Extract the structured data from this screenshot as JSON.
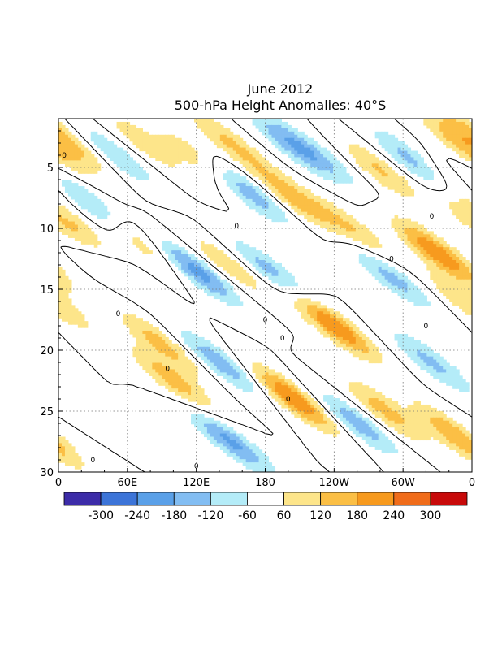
{
  "chart_data": {
    "type": "heatmap",
    "title": "June 2012",
    "subtitle": "500-hPa Height Anomalies: 40°S",
    "x_ticks": [
      "0",
      "60E",
      "120E",
      "180",
      "120W",
      "60W",
      "0"
    ],
    "y_ticks": [
      "5",
      "10",
      "15",
      "20",
      "25",
      "30"
    ],
    "x_domain": "longitude 0 to 360",
    "y_domain": "day of month 1 (top) to 30 (bottom)",
    "colorbar_labels": [
      "-300",
      "-240",
      "-180",
      "-120",
      "-60",
      "60",
      "120",
      "180",
      "240",
      "300"
    ],
    "colorbar_colors": [
      "#3c2ca8",
      "#3c74d8",
      "#5aa0e8",
      "#82bdf2",
      "#b4ecf8",
      "#ffffff",
      "#fde58a",
      "#fbbf45",
      "#f79a1e",
      "#f06c1a",
      "#c80a0a"
    ],
    "contour_label": "0",
    "grid": "dotted",
    "streaks": [
      {
        "lon": 12,
        "day": 10.0,
        "value": 150
      },
      {
        "lon": 28,
        "day": 8.0,
        "value": -150
      },
      {
        "lon": 5,
        "day": 2.5,
        "value": 140
      },
      {
        "lon": 50,
        "day": 4.0,
        "value": -120
      },
      {
        "lon": 45,
        "day": 13.0,
        "value": -80
      },
      {
        "lon": 70,
        "day": 11.0,
        "value": 120
      },
      {
        "lon": 75,
        "day": 3.0,
        "value": 100
      },
      {
        "lon": 90,
        "day": 19.5,
        "value": 150
      },
      {
        "lon": 100,
        "day": 22.5,
        "value": 160
      },
      {
        "lon": 120,
        "day": 13.5,
        "value": -220
      },
      {
        "lon": 118,
        "day": 4.0,
        "value": 100
      },
      {
        "lon": 150,
        "day": 3.0,
        "value": 130
      },
      {
        "lon": 165,
        "day": 7.0,
        "value": -170
      },
      {
        "lon": 148,
        "day": 13.0,
        "value": 110
      },
      {
        "lon": 140,
        "day": 21.0,
        "value": -170
      },
      {
        "lon": 150,
        "day": 27.5,
        "value": -200
      },
      {
        "lon": 185,
        "day": 13.5,
        "value": -150
      },
      {
        "lon": 200,
        "day": 3.0,
        "value": -140
      },
      {
        "lon": 205,
        "day": 7.5,
        "value": 160
      },
      {
        "lon": 205,
        "day": 24.0,
        "value": 250
      },
      {
        "lon": 225,
        "day": 4.0,
        "value": -110
      },
      {
        "lon": 240,
        "day": 18.0,
        "value": 250
      },
      {
        "lon": 255,
        "day": 10.0,
        "value": 120
      },
      {
        "lon": 265,
        "day": 4.5,
        "value": -80
      },
      {
        "lon": 260,
        "day": 26.0,
        "value": -160
      },
      {
        "lon": 275,
        "day": 5.0,
        "value": 200
      },
      {
        "lon": 290,
        "day": 14.0,
        "value": -150
      },
      {
        "lon": 285,
        "day": 25.0,
        "value": 150
      },
      {
        "lon": 310,
        "day": 4.5,
        "value": -170
      },
      {
        "lon": 325,
        "day": 21.0,
        "value": -140
      },
      {
        "lon": 330,
        "day": 12.0,
        "value": 240
      },
      {
        "lon": 350,
        "day": 3.0,
        "value": 150
      },
      {
        "lon": 345,
        "day": 27.0,
        "value": 180
      },
      {
        "lon": 355,
        "day": 16.0,
        "value": 120
      },
      {
        "lon": 340,
        "day": 6.0,
        "value": 100
      }
    ]
  }
}
